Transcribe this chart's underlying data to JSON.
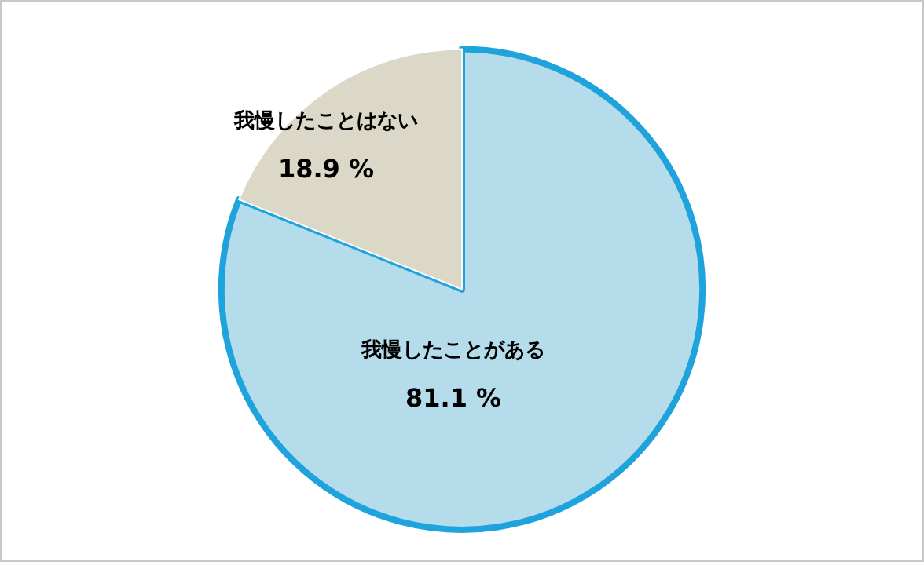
{
  "chart_data": {
    "type": "pie",
    "categories": [
      "我慢したことがある",
      "我慢したことはない"
    ],
    "values": [
      81.1,
      18.9
    ],
    "value_labels": [
      "81.1 %",
      "18.9 %"
    ],
    "colors": [
      "#b4dcea",
      "#dcd8c8"
    ],
    "legend": false
  }
}
